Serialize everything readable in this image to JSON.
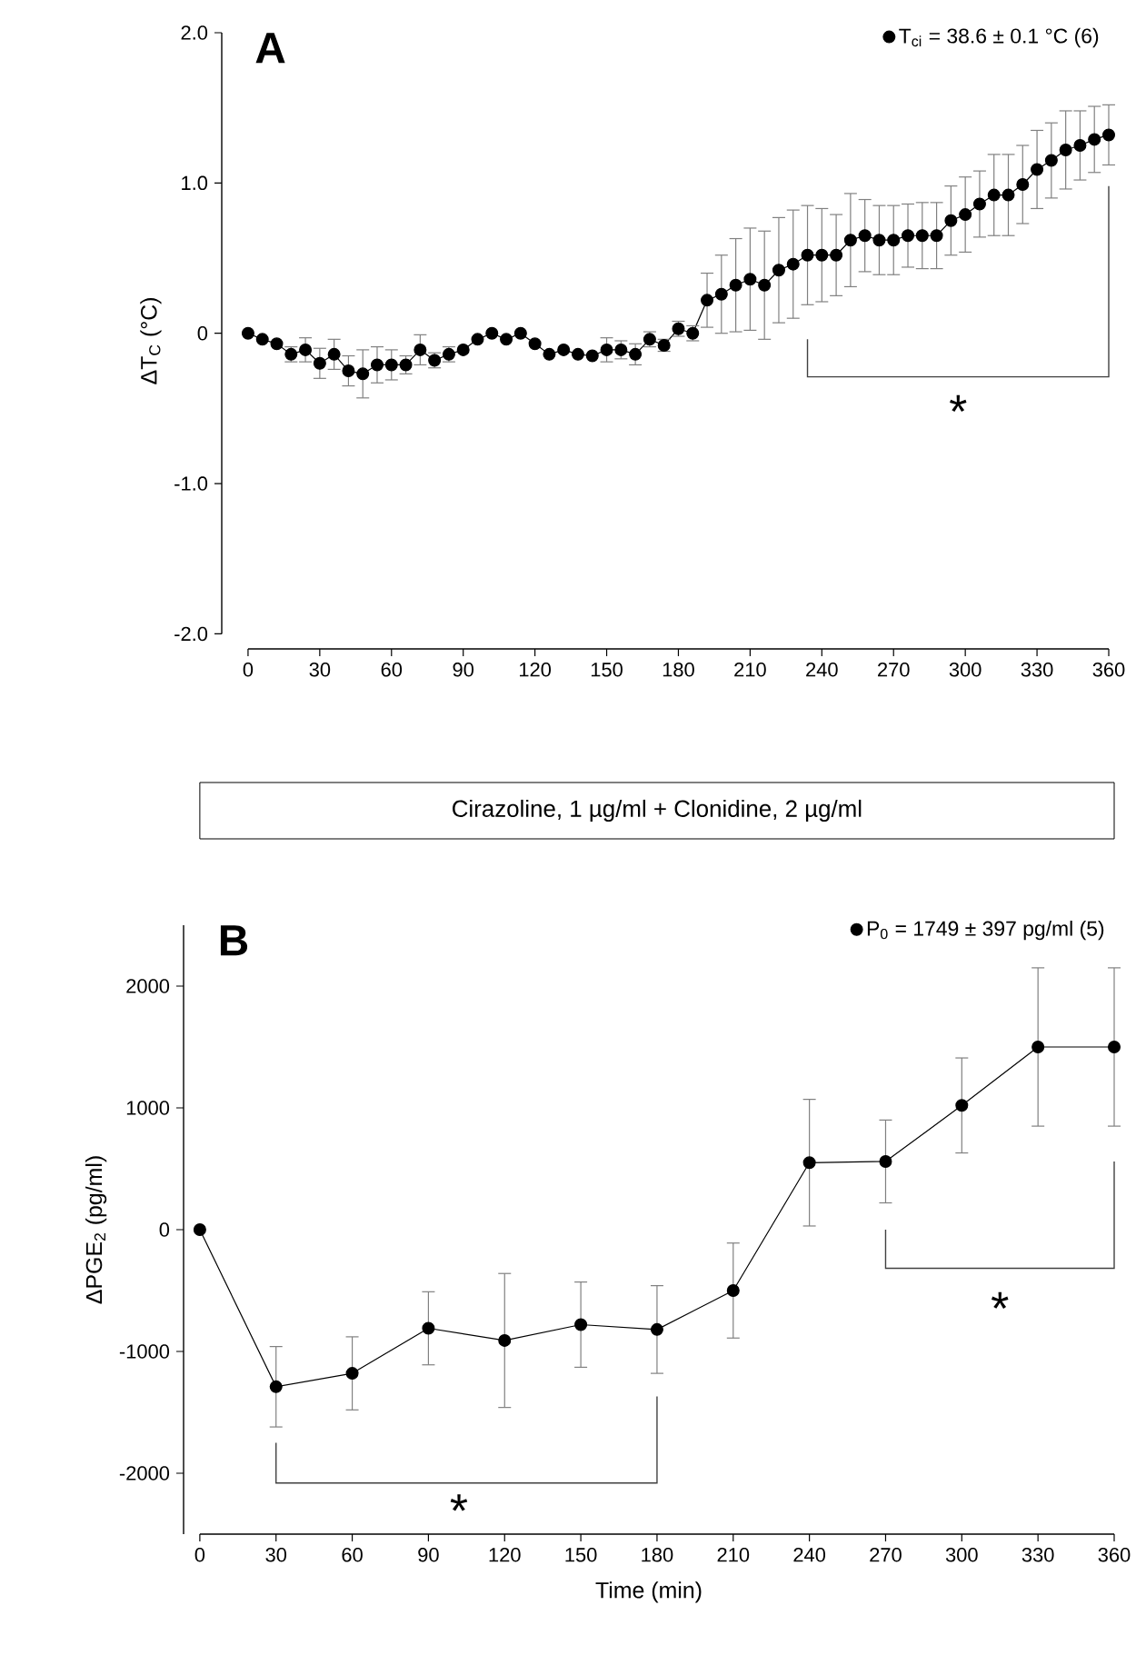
{
  "chart_data": [
    {
      "type": "line",
      "title": "A",
      "ylabel": "ΔT$_{C}$ (°C)",
      "marker": "circle",
      "line_style": "solid",
      "legend": "top right",
      "grid": false,
      "x": [
        0,
        6,
        12,
        18,
        24,
        30,
        36,
        42,
        48,
        54,
        60,
        66,
        72,
        78,
        84,
        90,
        96,
        102,
        108,
        114,
        120,
        126,
        132,
        138,
        144,
        150,
        156,
        162,
        168,
        174,
        180,
        186,
        192,
        198,
        204,
        210,
        216,
        222,
        228,
        234,
        240,
        246,
        252,
        258,
        264,
        270,
        276,
        282,
        288,
        294,
        300,
        306,
        312,
        318,
        324,
        330,
        336,
        342,
        348,
        354,
        360
      ],
      "series": [
        {
          "name": "T$_{ci}$ = 38.6 ± 0.1 °C (6)",
          "color": "#000000",
          "values": [
            0,
            -0.04,
            -0.07,
            -0.14,
            -0.11,
            -0.2,
            -0.14,
            -0.25,
            -0.27,
            -0.21,
            -0.21,
            -0.21,
            -0.11,
            -0.18,
            -0.14,
            -0.11,
            -0.04,
            0,
            -0.04,
            0,
            -0.07,
            -0.14,
            -0.11,
            -0.14,
            -0.15,
            -0.11,
            -0.11,
            -0.14,
            -0.04,
            -0.08,
            0.03,
            0,
            0.22,
            0.26,
            0.32,
            0.36,
            0.32,
            0.42,
            0.46,
            0.52,
            0.52,
            0.52,
            0.62,
            0.65,
            0.62,
            0.62,
            0.65,
            0.65,
            0.65,
            0.75,
            0.79,
            0.86,
            0.92,
            0.92,
            0.99,
            1.09,
            1.15,
            1.22,
            1.25,
            1.29,
            1.32
          ],
          "errors": [
            null,
            null,
            null,
            0.05,
            0.08,
            0.1,
            0.1,
            0.1,
            0.16,
            0.12,
            0.1,
            0.06,
            0.1,
            0.05,
            0.05,
            null,
            null,
            null,
            null,
            null,
            null,
            null,
            null,
            null,
            null,
            0.08,
            0.06,
            0.07,
            0.05,
            0.04,
            0.05,
            0.05,
            0.18,
            0.26,
            0.31,
            0.34,
            0.36,
            0.35,
            0.36,
            0.33,
            0.31,
            0.27,
            0.31,
            0.24,
            0.23,
            0.23,
            0.21,
            0.22,
            0.22,
            0.23,
            0.25,
            0.22,
            0.27,
            0.27,
            0.26,
            0.26,
            0.25,
            0.26,
            0.23,
            0.22,
            0.2
          ]
        }
      ],
      "xlim": [
        0,
        360
      ],
      "xticks": [
        0,
        30,
        60,
        90,
        120,
        150,
        180,
        210,
        240,
        270,
        300,
        330,
        360
      ],
      "ylim": [
        -2,
        2
      ],
      "yticks": [
        {
          "value": -2,
          "label": "-2.0"
        },
        {
          "value": -1,
          "label": "-1.0"
        },
        0,
        {
          "value": 1,
          "label": "1.0"
        },
        {
          "value": 2,
          "label": "2.0"
        }
      ],
      "annotations": [
        "*"
      ]
    },
    {
      "type": "line",
      "title": "B",
      "subtitle": "Cirazoline, 1 µg/ml + Clonidine, 2 µg/ml",
      "xlabel": "Time (min)",
      "ylabel": "ΔPGE$_{2}$ (pg/ml)",
      "marker": "circle",
      "line_style": "solid",
      "legend": "top right",
      "grid": false,
      "x": [
        0,
        30,
        60,
        90,
        120,
        150,
        180,
        210,
        240,
        270,
        300,
        330,
        360
      ],
      "series": [
        {
          "name": "P$_{0}$ = 1749 ± 397 pg/ml (5)",
          "color": "#000000",
          "values": [
            0,
            -1290,
            -1180,
            -810,
            -910,
            -780,
            -820,
            -500,
            550,
            560,
            1020,
            1500,
            1500
          ],
          "errors": [
            null,
            330,
            300,
            300,
            550,
            350,
            360,
            390,
            520,
            340,
            390,
            650,
            650
          ]
        }
      ],
      "xlim": [
        0,
        360
      ],
      "xticks": [
        0,
        30,
        60,
        90,
        120,
        150,
        180,
        210,
        240,
        270,
        300,
        330,
        360
      ],
      "ylim": [
        -2500,
        2500
      ],
      "yticks": [
        -2000,
        -1000,
        0,
        1000,
        2000
      ],
      "annotations": [
        "*",
        "*"
      ]
    }
  ]
}
